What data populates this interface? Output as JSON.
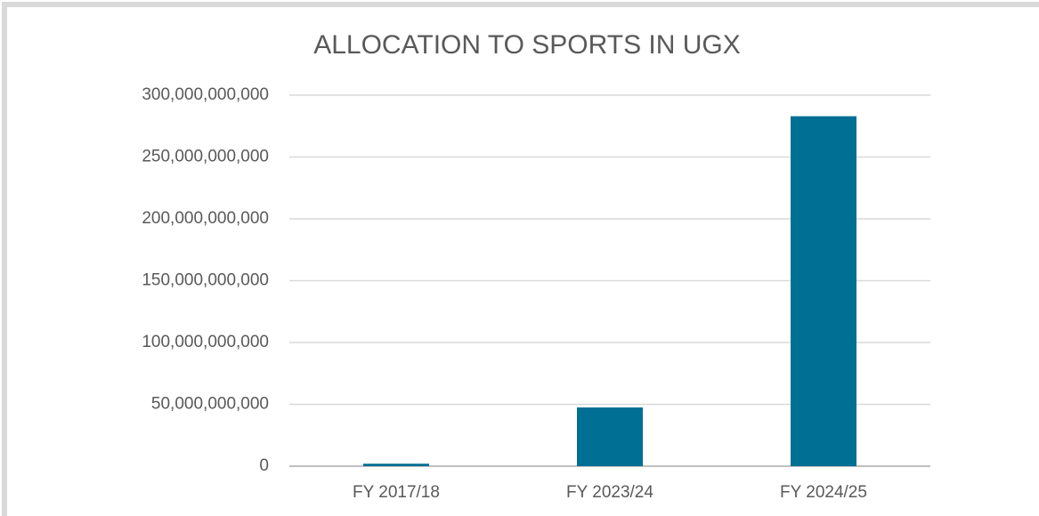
{
  "chart_data": {
    "type": "bar",
    "title": "ALLOCATION TO SPORTS IN UGX",
    "categories": [
      "FY 2017/18",
      "FY 2023/24",
      "FY 2024/25"
    ],
    "values": [
      2000000000,
      47500000000,
      283000000000
    ],
    "color": "#006f94",
    "ylim": [
      0,
      300000000000
    ],
    "yticks": [
      0,
      {
        "value": 50000000000,
        "label": "50,000,000,000"
      },
      {
        "value": 100000000000,
        "label": "100,000,000,000"
      },
      {
        "value": 150000000000,
        "label": "150,000,000,000"
      },
      {
        "value": 200000000000,
        "label": "200,000,000,000"
      },
      {
        "value": 250000000000,
        "label": "250,000,000,000"
      },
      {
        "value": 300000000000,
        "label": "300,000,000,000"
      }
    ],
    "grid": true
  }
}
